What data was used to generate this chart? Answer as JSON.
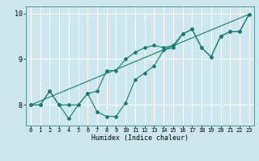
{
  "xlabel": "Humidex (Indice chaleur)",
  "bg_color": "#cce8ee",
  "grid_color": "#ffffff",
  "line_color": "#1a7a6e",
  "xlim": [
    -0.5,
    23.5
  ],
  "ylim": [
    7.55,
    10.15
  ],
  "yticks": [
    8,
    9,
    10
  ],
  "xticks": [
    0,
    1,
    2,
    3,
    4,
    5,
    6,
    7,
    8,
    9,
    10,
    11,
    12,
    13,
    14,
    15,
    16,
    17,
    18,
    19,
    20,
    21,
    22,
    23
  ],
  "line1_x": [
    0,
    1,
    2,
    3,
    4,
    5,
    6,
    7,
    8,
    9,
    10,
    11,
    12,
    13,
    14,
    15,
    16,
    17,
    18,
    19,
    20,
    21,
    22,
    23
  ],
  "line1_y": [
    8.0,
    8.0,
    8.3,
    8.0,
    7.7,
    8.0,
    8.25,
    7.85,
    7.75,
    7.75,
    8.05,
    8.55,
    8.7,
    8.85,
    9.2,
    9.25,
    9.55,
    9.65,
    9.25,
    9.05,
    9.5,
    9.6,
    9.6,
    9.98
  ],
  "line2_x": [
    0,
    1,
    2,
    3,
    4,
    5,
    6,
    7,
    8,
    9,
    10,
    11,
    12,
    13,
    14,
    15,
    16,
    17,
    18,
    19,
    20,
    21,
    22,
    23
  ],
  "line2_y": [
    8.0,
    8.0,
    8.3,
    8.0,
    8.0,
    8.0,
    8.25,
    8.3,
    8.75,
    8.75,
    9.0,
    9.15,
    9.25,
    9.3,
    9.25,
    9.3,
    9.55,
    9.65,
    9.25,
    9.05,
    9.5,
    9.6,
    9.6,
    9.98
  ],
  "line3_x": [
    0,
    23
  ],
  "line3_y": [
    8.0,
    9.98
  ]
}
